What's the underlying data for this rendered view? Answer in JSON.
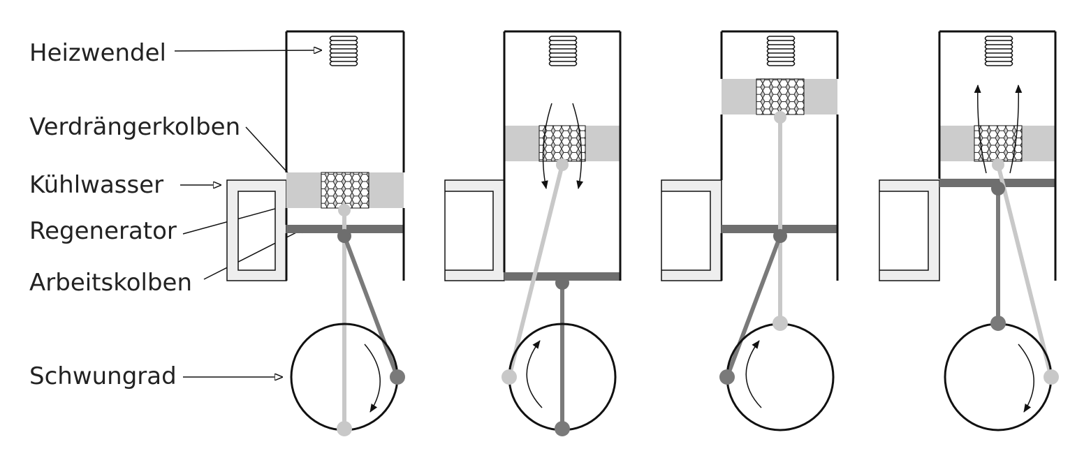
{
  "labels": {
    "heizwendel": "Heizwendel",
    "verdraengerkolben": "Verdrängerkolben",
    "kuehlwasser": "Kühlwasser",
    "regenerator": "Regenerator",
    "arbeitskolben": "Arbeitskolben",
    "schwungrad": "Schwungrad"
  },
  "colors": {
    "outline": "#111111",
    "displacer_fill": "#cccccc",
    "working_piston": "#6e6e6e",
    "rod_light": "#c8c8c8",
    "rod_dark": "#7a7a7a",
    "cooling_jacket": "#eeeeee",
    "background": "#ffffff"
  },
  "stages": [
    {
      "name": "stage-1",
      "displacer": "low",
      "working_piston": "high",
      "gas_flow": "none",
      "rotation": "clockwise"
    },
    {
      "name": "stage-2",
      "displacer": "middle",
      "working_piston": "bottom",
      "gas_flow": "down",
      "rotation": "clockwise"
    },
    {
      "name": "stage-3",
      "displacer": "top",
      "working_piston": "middle",
      "gas_flow": "none",
      "rotation": "clockwise"
    },
    {
      "name": "stage-4",
      "displacer": "middle",
      "working_piston": "top",
      "gas_flow": "up",
      "rotation": "clockwise"
    }
  ]
}
